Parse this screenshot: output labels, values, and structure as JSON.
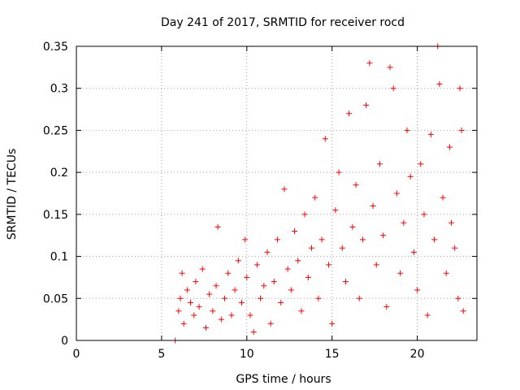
{
  "chart_data": {
    "type": "scatter",
    "title": "Day 241 of 2017, SRMTID for receiver rocd",
    "xlabel": "GPS time / hours",
    "ylabel": "SRMTID / TECUs",
    "xlim": [
      0,
      23.5
    ],
    "ylim": [
      0,
      0.35
    ],
    "x_ticks": [
      0,
      5,
      10,
      15,
      20
    ],
    "y_ticks": [
      0,
      0.05,
      0.1,
      0.15,
      0.2,
      0.25,
      0.3,
      0.35
    ],
    "x_tick_labels": [
      "0",
      "5",
      "10",
      "15",
      "20"
    ],
    "y_tick_labels": [
      "0",
      "0.05",
      "0.1",
      "0.15",
      "0.2",
      "0.25",
      "0.3",
      "0.35"
    ],
    "grid": true,
    "marker": "+",
    "marker_color": "#ff0000",
    "series": [
      {
        "name": "SRMTID",
        "points": [
          [
            5.8,
            0.0
          ],
          [
            6.0,
            0.035
          ],
          [
            6.1,
            0.05
          ],
          [
            6.2,
            0.08
          ],
          [
            6.3,
            0.02
          ],
          [
            6.5,
            0.06
          ],
          [
            6.7,
            0.045
          ],
          [
            6.9,
            0.03
          ],
          [
            7.0,
            0.07
          ],
          [
            7.2,
            0.04
          ],
          [
            7.4,
            0.085
          ],
          [
            7.6,
            0.015
          ],
          [
            7.8,
            0.055
          ],
          [
            8.0,
            0.035
          ],
          [
            8.2,
            0.065
          ],
          [
            8.3,
            0.135
          ],
          [
            8.5,
            0.025
          ],
          [
            8.7,
            0.05
          ],
          [
            8.9,
            0.08
          ],
          [
            9.1,
            0.03
          ],
          [
            9.3,
            0.06
          ],
          [
            9.5,
            0.095
          ],
          [
            9.7,
            0.045
          ],
          [
            9.9,
            0.12
          ],
          [
            10.0,
            0.075
          ],
          [
            10.2,
            0.03
          ],
          [
            10.4,
            0.01
          ],
          [
            10.6,
            0.09
          ],
          [
            10.8,
            0.05
          ],
          [
            11.0,
            0.065
          ],
          [
            11.2,
            0.105
          ],
          [
            11.4,
            0.02
          ],
          [
            11.6,
            0.07
          ],
          [
            11.8,
            0.12
          ],
          [
            12.0,
            0.045
          ],
          [
            12.2,
            0.18
          ],
          [
            12.4,
            0.085
          ],
          [
            12.6,
            0.06
          ],
          [
            12.8,
            0.13
          ],
          [
            13.0,
            0.095
          ],
          [
            13.2,
            0.035
          ],
          [
            13.4,
            0.15
          ],
          [
            13.6,
            0.075
          ],
          [
            13.8,
            0.11
          ],
          [
            14.0,
            0.17
          ],
          [
            14.2,
            0.05
          ],
          [
            14.4,
            0.12
          ],
          [
            14.6,
            0.24
          ],
          [
            14.8,
            0.09
          ],
          [
            15.0,
            0.02
          ],
          [
            15.2,
            0.155
          ],
          [
            15.4,
            0.2
          ],
          [
            15.6,
            0.11
          ],
          [
            15.8,
            0.07
          ],
          [
            16.0,
            0.27
          ],
          [
            16.2,
            0.135
          ],
          [
            16.4,
            0.185
          ],
          [
            16.6,
            0.05
          ],
          [
            16.8,
            0.12
          ],
          [
            17.0,
            0.28
          ],
          [
            17.2,
            0.33
          ],
          [
            17.4,
            0.16
          ],
          [
            17.6,
            0.09
          ],
          [
            17.8,
            0.21
          ],
          [
            18.0,
            0.125
          ],
          [
            18.2,
            0.04
          ],
          [
            18.4,
            0.325
          ],
          [
            18.6,
            0.3
          ],
          [
            18.8,
            0.175
          ],
          [
            19.0,
            0.08
          ],
          [
            19.2,
            0.14
          ],
          [
            19.4,
            0.25
          ],
          [
            19.6,
            0.195
          ],
          [
            19.8,
            0.105
          ],
          [
            20.0,
            0.06
          ],
          [
            20.2,
            0.21
          ],
          [
            20.4,
            0.15
          ],
          [
            20.6,
            0.03
          ],
          [
            20.8,
            0.245
          ],
          [
            21.0,
            0.12
          ],
          [
            21.2,
            0.35
          ],
          [
            21.3,
            0.305
          ],
          [
            21.5,
            0.17
          ],
          [
            21.7,
            0.08
          ],
          [
            21.9,
            0.23
          ],
          [
            22.0,
            0.14
          ],
          [
            22.2,
            0.11
          ],
          [
            22.4,
            0.05
          ],
          [
            22.5,
            0.3
          ],
          [
            22.6,
            0.25
          ],
          [
            22.7,
            0.035
          ]
        ]
      }
    ]
  }
}
